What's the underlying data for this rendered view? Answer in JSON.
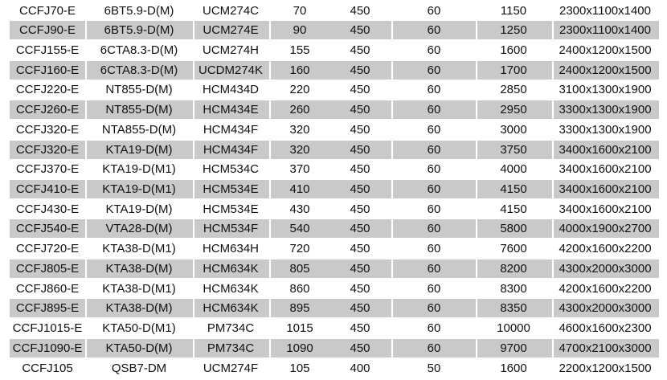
{
  "table": {
    "stripe_color": "#c9c9c9",
    "rows": [
      [
        "CCFJ70-E",
        "6BT5.9-D(M)",
        "UCM274C",
        "70",
        "450",
        "60",
        "1150",
        "2300x1100x1400"
      ],
      [
        "CCFJ90-E",
        "6BT5.9-D(M)",
        "UCM274E",
        "90",
        "450",
        "60",
        "1250",
        "2300x1100x1400"
      ],
      [
        "CCFJ155-E",
        "6CTA8.3-D(M)",
        "UCM274H",
        "155",
        "450",
        "60",
        "1600",
        "2400x1200x1500"
      ],
      [
        "CCFJ160-E",
        "6CTA8.3-D(M)",
        "UCDM274K",
        "160",
        "450",
        "60",
        "1700",
        "2400x1200x1500"
      ],
      [
        "CCFJ220-E",
        "NT855-D(M)",
        "HCM434D",
        "220",
        "450",
        "60",
        "2850",
        "3100x1300x1900"
      ],
      [
        "CCFJ260-E",
        "NT855-D(M)",
        "HCM434E",
        "260",
        "450",
        "60",
        "2950",
        "3300x1300x1900"
      ],
      [
        "CCFJ320-E",
        "NTA855-D(M)",
        "HCM434F",
        "320",
        "450",
        "60",
        "3000",
        "3300x1300x1900"
      ],
      [
        "CCFJ320-E",
        "KTA19-D(M)",
        "HCM434F",
        "320",
        "450",
        "60",
        "3750",
        "3400x1600x2100"
      ],
      [
        "CCFJ370-E",
        "KTA19-D(M1)",
        "HCM534C",
        "370",
        "450",
        "60",
        "4000",
        "3400x1600x2100"
      ],
      [
        "CCFJ410-E",
        "KTA19-D(M1)",
        "HCM534E",
        "410",
        "450",
        "60",
        "4150",
        "3400x1600x2100"
      ],
      [
        "CCFJ430-E",
        "KTA19-D(M)",
        "HCM534E",
        "430",
        "450",
        "60",
        "4150",
        "3400x1600x2100"
      ],
      [
        "CCFJ540-E",
        "VTA28-D(M)",
        "HCM534F",
        "540",
        "450",
        "60",
        "5800",
        "4000x1900x2700"
      ],
      [
        "CCFJ720-E",
        "KTA38-D(M1)",
        "HCM634H",
        "720",
        "450",
        "60",
        "7600",
        "4200x1600x2200"
      ],
      [
        "CCFJ805-E",
        "KTA38-D(M)",
        "HCM634K",
        "805",
        "450",
        "60",
        "8200",
        "4300x2000x3000"
      ],
      [
        "CCFJ860-E",
        "KTA38-D(M1)",
        "HCM634K",
        "860",
        "450",
        "60",
        "8300",
        "4200x1600x2200"
      ],
      [
        "CCFJ895-E",
        "KTA38-D(M)",
        "HCM634K",
        "895",
        "450",
        "60",
        "8350",
        "4300x2000x3000"
      ],
      [
        "CCFJ1015-E",
        "KTA50-D(M1)",
        "PM734C",
        "1015",
        "450",
        "60",
        "10000",
        "4600x1600x2300"
      ],
      [
        "CCFJ1090-E",
        "KTA50-D(M)",
        "PM734C",
        "1090",
        "450",
        "60",
        "9700",
        "4700x2100x3000"
      ],
      [
        "CCFJ105",
        "QSB7-DM",
        "UCM274F",
        "105",
        "400",
        "50",
        "1600",
        "2200x1200x1500"
      ]
    ]
  }
}
